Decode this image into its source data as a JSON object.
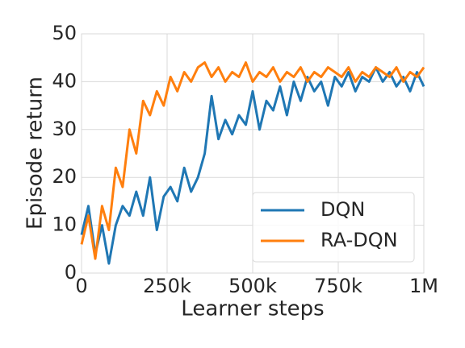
{
  "chart_data": {
    "type": "line",
    "xlabel": "Learner steps",
    "ylabel": "Episode return",
    "x": [
      0,
      20000,
      40000,
      60000,
      80000,
      100000,
      120000,
      140000,
      160000,
      180000,
      200000,
      220000,
      240000,
      260000,
      280000,
      300000,
      320000,
      340000,
      360000,
      380000,
      400000,
      420000,
      440000,
      460000,
      480000,
      500000,
      520000,
      540000,
      560000,
      580000,
      600000,
      620000,
      640000,
      660000,
      680000,
      700000,
      720000,
      740000,
      760000,
      780000,
      800000,
      820000,
      840000,
      860000,
      880000,
      900000,
      920000,
      940000,
      960000,
      980000,
      1000000
    ],
    "series": [
      {
        "name": "DQN",
        "color": "#1f77b4",
        "values": [
          8,
          14,
          4,
          10,
          2,
          10,
          14,
          12,
          17,
          12,
          20,
          9,
          16,
          18,
          15,
          22,
          17,
          20,
          25,
          37,
          28,
          32,
          29,
          33,
          31,
          38,
          30,
          36,
          34,
          39,
          33,
          40,
          36,
          41,
          38,
          40,
          35,
          41,
          39,
          42,
          38,
          41,
          40,
          43,
          40,
          42,
          39,
          41,
          38,
          42,
          39
        ]
      },
      {
        "name": "RA-DQN",
        "color": "#ff7f0e",
        "values": [
          6,
          12,
          3,
          14,
          9,
          22,
          18,
          30,
          25,
          36,
          33,
          38,
          35,
          41,
          38,
          42,
          40,
          43,
          44,
          41,
          43,
          40,
          42,
          41,
          44,
          40,
          42,
          41,
          43,
          40,
          42,
          41,
          43,
          40,
          42,
          41,
          43,
          42,
          41,
          43,
          40,
          42,
          41,
          43,
          42,
          41,
          43,
          40,
          42,
          41,
          43
        ]
      }
    ],
    "xlim": [
      0,
      1000000
    ],
    "xticks": [
      0,
      {
        "value": 250000,
        "label": "250k"
      },
      {
        "value": 500000,
        "label": "500k"
      },
      {
        "value": 750000,
        "label": "750k"
      },
      {
        "value": 1000000,
        "label": "1M"
      }
    ],
    "ylim": [
      0,
      50
    ],
    "yticks": [
      0,
      10,
      20,
      30,
      40,
      50
    ],
    "grid": true,
    "legend": "lower right"
  }
}
